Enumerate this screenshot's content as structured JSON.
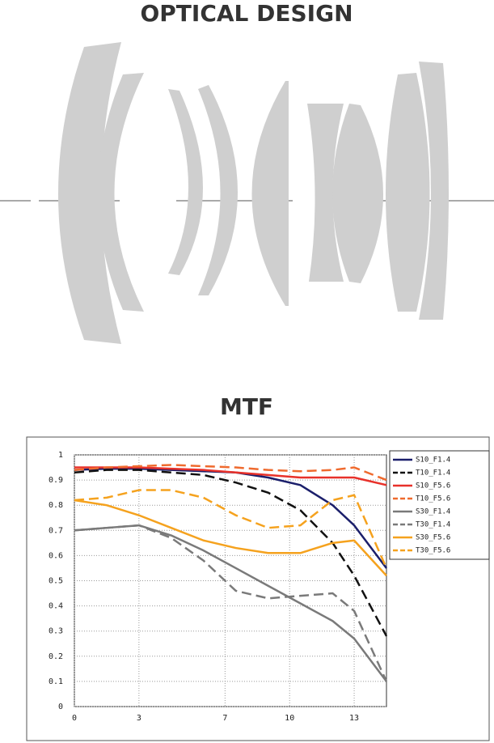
{
  "header": {
    "title": "OPTICAL DESIGN"
  },
  "mtf_title": "MTF",
  "chart_data": {
    "type": "line",
    "x": [
      0,
      1.5,
      3,
      4.5,
      6,
      7.5,
      9,
      10.5,
      12,
      13,
      14.5
    ],
    "xlim": [
      0,
      14.5
    ],
    "xticks": [
      0,
      3,
      7,
      10,
      13
    ],
    "ylim": [
      0,
      1
    ],
    "yticks": [
      0,
      0.1,
      0.2,
      0.3,
      0.4,
      0.5,
      0.6,
      0.7,
      0.8,
      0.9,
      1
    ],
    "grid": true,
    "legend": "right",
    "series": [
      {
        "name": "S10_F1.4",
        "color": "#1b1f6b",
        "style": "solid",
        "values": [
          0.94,
          0.945,
          0.945,
          0.94,
          0.935,
          0.93,
          0.91,
          0.88,
          0.8,
          0.72,
          0.55
        ]
      },
      {
        "name": "T10_F1.4",
        "color": "#111111",
        "style": "dashed",
        "values": [
          0.93,
          0.94,
          0.94,
          0.93,
          0.92,
          0.89,
          0.85,
          0.78,
          0.65,
          0.52,
          0.28
        ]
      },
      {
        "name": "S10_F5.6",
        "color": "#e8312a",
        "style": "solid",
        "values": [
          0.95,
          0.95,
          0.95,
          0.945,
          0.94,
          0.93,
          0.92,
          0.91,
          0.91,
          0.91,
          0.88
        ]
      },
      {
        "name": "T10_F5.6",
        "color": "#ef6a2e",
        "style": "dashed",
        "values": [
          0.94,
          0.95,
          0.955,
          0.96,
          0.955,
          0.95,
          0.94,
          0.935,
          0.94,
          0.95,
          0.9
        ]
      },
      {
        "name": "S30_F1.4",
        "color": "#7a7a7a",
        "style": "solid",
        "values": [
          0.7,
          0.71,
          0.72,
          0.68,
          0.62,
          0.55,
          0.48,
          0.41,
          0.34,
          0.27,
          0.1
        ]
      },
      {
        "name": "T30_F1.4",
        "color": "#7a7a7a",
        "style": "dashed",
        "values": [
          0.7,
          0.71,
          0.72,
          0.67,
          0.58,
          0.46,
          0.43,
          0.44,
          0.45,
          0.38,
          0.1
        ]
      },
      {
        "name": "S30_F5.6",
        "color": "#f5a21e",
        "style": "solid",
        "values": [
          0.82,
          0.8,
          0.76,
          0.71,
          0.66,
          0.63,
          0.61,
          0.61,
          0.65,
          0.66,
          0.52
        ]
      },
      {
        "name": "T30_F5.6",
        "color": "#f5a21e",
        "style": "dashed",
        "values": [
          0.82,
          0.83,
          0.86,
          0.86,
          0.83,
          0.76,
          0.71,
          0.72,
          0.82,
          0.84,
          0.55
        ]
      }
    ]
  }
}
